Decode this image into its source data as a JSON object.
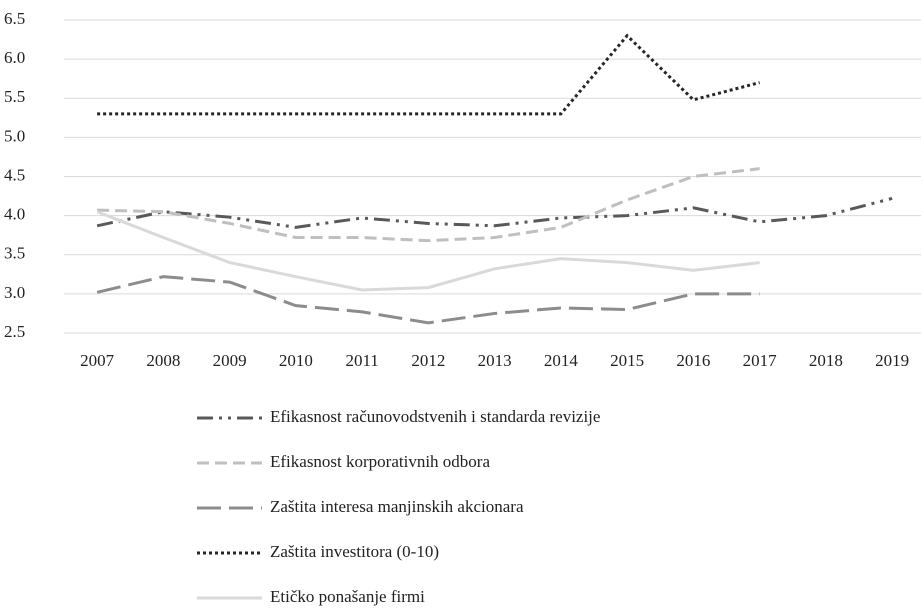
{
  "chart_data": {
    "type": "line",
    "categories": [
      "2007",
      "2008",
      "2009",
      "2010",
      "2011",
      "2012",
      "2013",
      "2014",
      "2015",
      "2016",
      "2017",
      "2018",
      "2019"
    ],
    "series": [
      {
        "name": "Efikasnost računovodstvenih i standarda revizije",
        "color": "#595959",
        "line_style": "dash-dot-dot",
        "values": [
          3.87,
          4.05,
          3.98,
          3.85,
          3.97,
          3.9,
          3.87,
          3.97,
          4.0,
          4.1,
          3.92,
          4.0,
          4.22
        ]
      },
      {
        "name": "Efikasnost korporativnih odbora",
        "color": "#bfbfbf",
        "line_style": "dash",
        "values": [
          4.07,
          4.05,
          3.9,
          3.72,
          3.72,
          3.68,
          3.72,
          3.85,
          4.2,
          4.5,
          4.6,
          null,
          null
        ]
      },
      {
        "name": "Zaštita interesa manjinskih akcionara",
        "color": "#8c8c8c",
        "line_style": "long-dash",
        "values": [
          3.02,
          3.22,
          3.15,
          2.85,
          2.77,
          2.63,
          2.75,
          2.82,
          2.8,
          3.0,
          3.0,
          null,
          null
        ]
      },
      {
        "name": "Zaštita investitora (0-10)",
        "color": "#262626",
        "line_style": "dot",
        "values": [
          5.3,
          5.3,
          5.3,
          5.3,
          5.3,
          5.3,
          5.3,
          5.3,
          6.3,
          5.48,
          5.7,
          null,
          null
        ]
      },
      {
        "name": "Etičko ponašanje firmi",
        "color": "#d9d9d9",
        "line_style": "solid",
        "values": [
          4.05,
          3.72,
          3.4,
          3.22,
          3.05,
          3.08,
          3.32,
          3.45,
          3.4,
          3.3,
          3.4,
          null,
          null
        ]
      }
    ],
    "ylim": [
      2.5,
      6.5
    ],
    "yticks": [
      2.5,
      {
        "value": 3,
        "label": "3.0"
      },
      3.5,
      {
        "value": 4,
        "label": "4.0"
      },
      4.5,
      {
        "value": 5,
        "label": "5.0"
      },
      5.5,
      {
        "value": 6,
        "label": "6.0"
      },
      6.5
    ],
    "grid": true,
    "legend": "bottom"
  }
}
